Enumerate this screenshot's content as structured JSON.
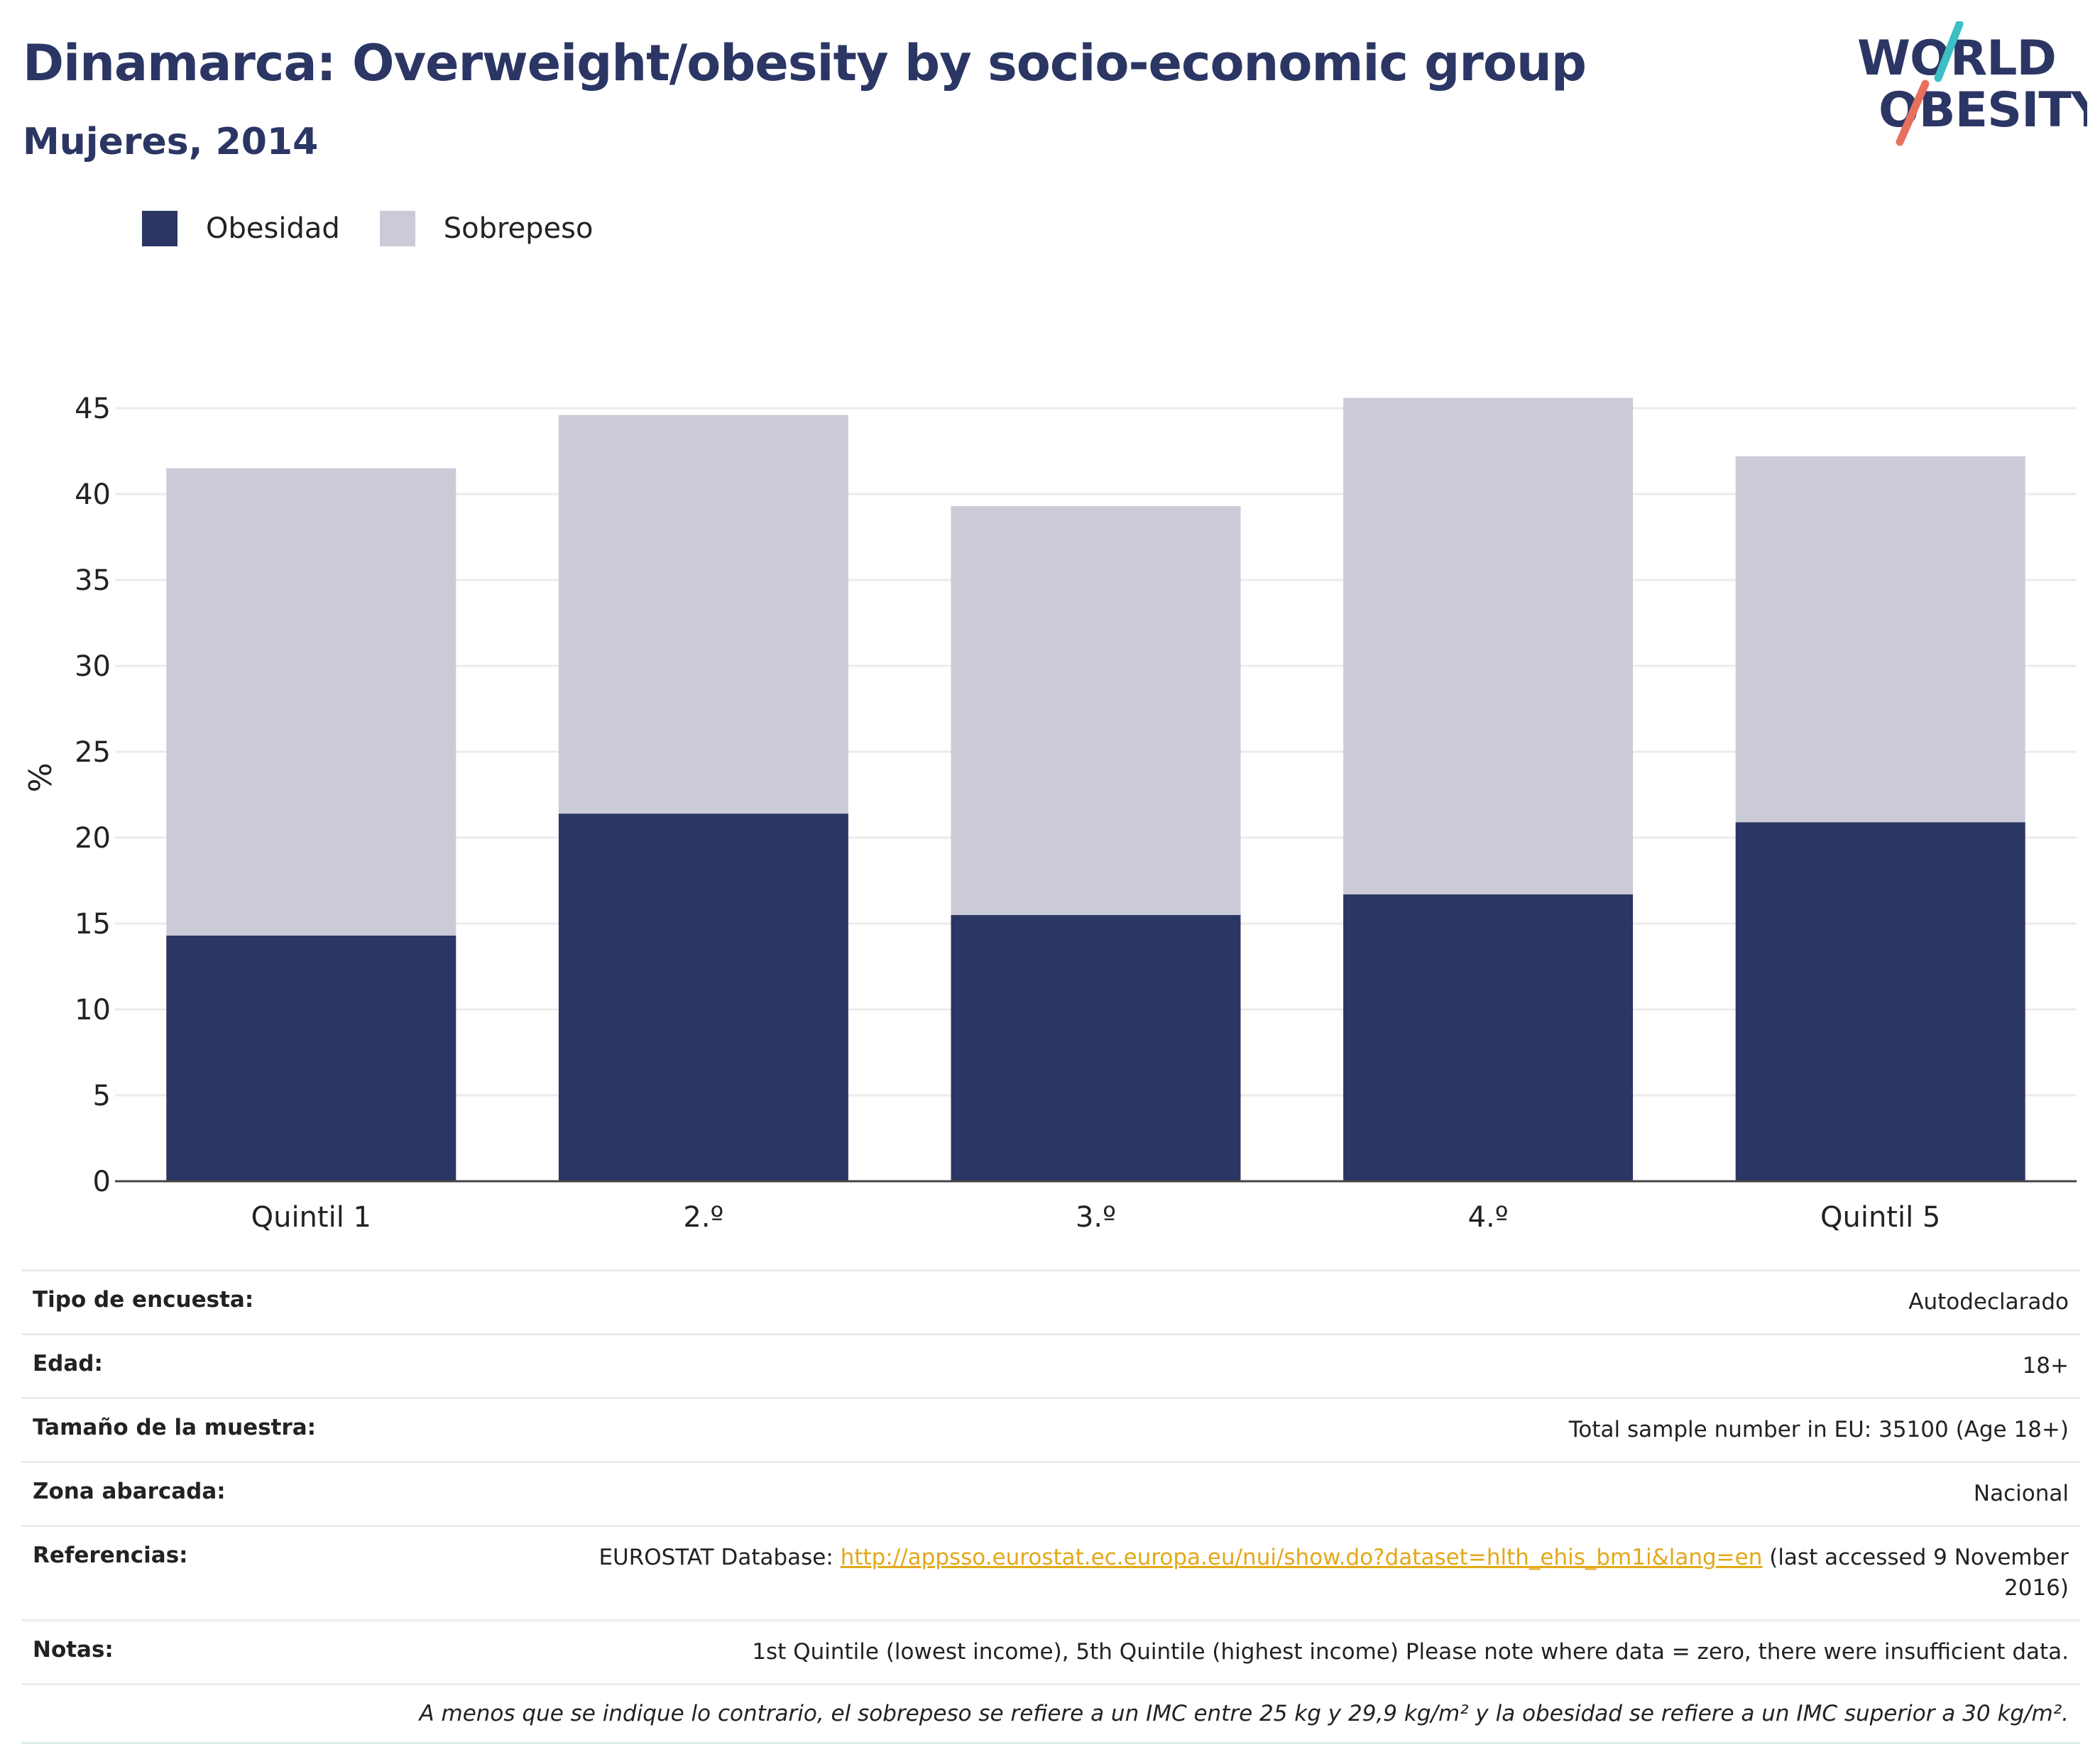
{
  "header": {
    "title": "Dinamarca: Overweight/obesity by socio-economic group",
    "subtitle": "Mujeres, 2014"
  },
  "logo": {
    "line1": "WORLD",
    "line2": "OBESITY",
    "icon": "world-obesity-logo"
  },
  "colors": {
    "obesity": "#2b3664",
    "overweight": "#cacbd7",
    "accent_teal": "#3bbfc4",
    "accent_coral": "#e8705f",
    "link": "#e3a81a"
  },
  "chart_data": {
    "type": "bar",
    "stacked": true,
    "categories": [
      "Quintil 1",
      "2.º",
      "3.º",
      "4.º",
      "Quintil 5"
    ],
    "series": [
      {
        "name": "Obesidad",
        "values": [
          14.3,
          21.4,
          15.5,
          16.7,
          20.9
        ]
      },
      {
        "name": "Sobrepeso",
        "values": [
          27.2,
          23.2,
          23.8,
          28.9,
          21.3
        ]
      }
    ],
    "title": "",
    "xlabel": "",
    "ylabel": "%",
    "ylim": [
      0,
      47
    ],
    "yticks": [
      0,
      5,
      10,
      15,
      20,
      25,
      30,
      35,
      40,
      45
    ],
    "grid": true,
    "legend": "top-left"
  },
  "info": {
    "survey_type": {
      "label": "Tipo de encuesta:",
      "value": "Autodeclarado"
    },
    "age": {
      "label": "Edad:",
      "value": "18+"
    },
    "sample_size": {
      "label": "Tamaño de la muestra:",
      "value": "Total sample number in EU: 35100 (Age 18+)"
    },
    "area": {
      "label": "Zona abarcada:",
      "value": "Nacional"
    },
    "references": {
      "label": "Referencias:",
      "prefix": "EUROSTAT Database: ",
      "link": "http://appsso.eurostat.ec.europa.eu/nui/show.do?dataset=hlth_ehis_bm1i&lang=en",
      "suffix": " (last accessed 9 November 2016)"
    },
    "notes": {
      "label": "Notas:",
      "value": "1st Quintile (lowest income), 5th Quintile (highest income) Please note where data = zero, there were insufficient data."
    },
    "footnote": "A menos que se indique lo contrario, el sobrepeso se refiere a un IMC entre 25 kg y 29,9 kg/m² y la obesidad se refiere a un IMC superior a 30 kg/m²."
  }
}
